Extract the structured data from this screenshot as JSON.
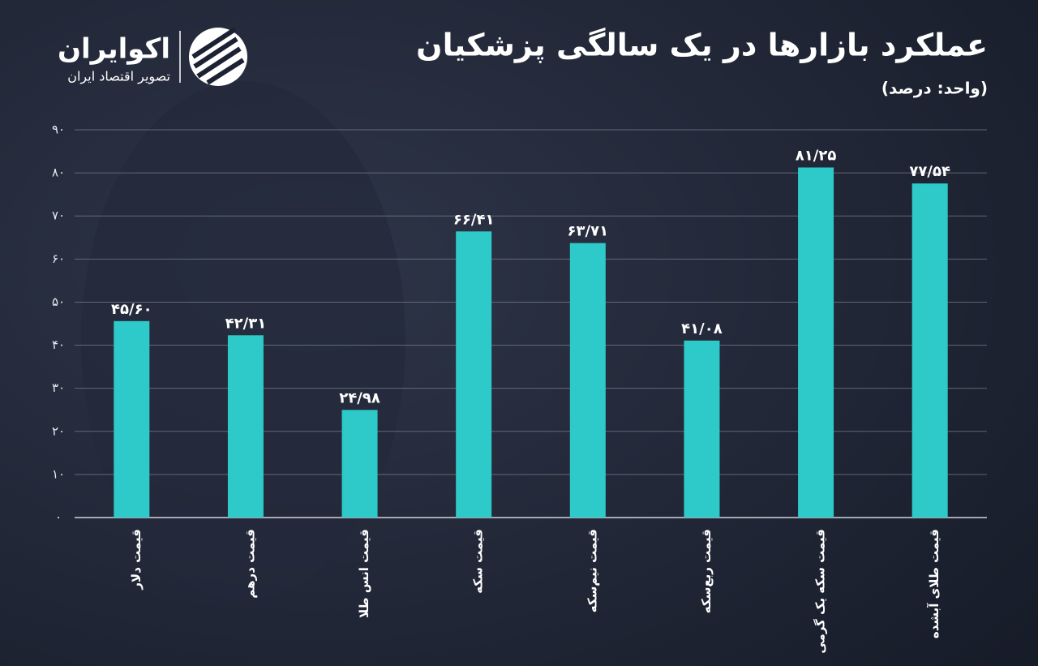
{
  "brand": {
    "name": "اکوایران",
    "tagline": "تصویر اقتصاد ایران"
  },
  "chart_data": {
    "type": "bar",
    "title": "عملکرد بازارها در یک سالگی پزشکیان",
    "subtitle": "(واحد: درصد)",
    "categories": [
      "قیمت دلار",
      "قیمت درهم",
      "قیمت انس طلا",
      "قیمت سکه",
      "قیمت نیم‌سکه",
      "قیمت ربع‌سکه",
      "قیمت سکه یک گرمی",
      "قیمت طلای آبشده"
    ],
    "values": [
      45.6,
      42.31,
      24.98,
      66.41,
      63.71,
      41.08,
      81.25,
      77.54
    ],
    "value_labels": [
      "۴۵/۶۰",
      "۴۲/۳۱",
      "۲۴/۹۸",
      "۶۶/۴۱",
      "۶۳/۷۱",
      "۴۱/۰۸",
      "۸۱/۲۵",
      "۷۷/۵۴"
    ],
    "color": "#2ec9c9",
    "ylim": [
      0,
      90
    ],
    "yticks": [
      {
        "value": 0,
        "label": "۰"
      },
      {
        "value": 10,
        "label": "۱۰"
      },
      {
        "value": 20,
        "label": "۲۰"
      },
      {
        "value": 30,
        "label": "۳۰"
      },
      {
        "value": 40,
        "label": "۴۰"
      },
      {
        "value": 50,
        "label": "۵۰"
      },
      {
        "value": 60,
        "label": "۶۰"
      },
      {
        "value": 70,
        "label": "۷۰"
      },
      {
        "value": 80,
        "label": "۸۰"
      },
      {
        "value": 90,
        "label": "۹۰"
      }
    ],
    "grid": true
  }
}
